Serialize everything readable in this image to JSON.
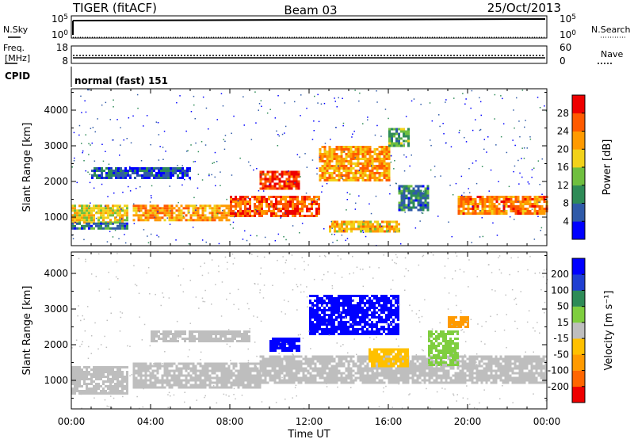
{
  "header": {
    "title": "TIGER (fitACF)",
    "beam": "Beam 03",
    "date": "25/Oct/2013"
  },
  "top_panels": {
    "nsky_label": "N.Sky",
    "nsearch_label": "N.Search",
    "freq_label_1": "Freq.",
    "freq_label_2": "[MHz]",
    "nave_label": "Nave",
    "cpid_label": "CPID",
    "cpid_value": "normal (fast) 151",
    "nsky_ticks": [
      "10^5",
      "10^0"
    ],
    "nsearch_ticks": [
      "10^5",
      "10^0"
    ],
    "freq_ticks": [
      "18",
      "8"
    ],
    "nave_ticks": [
      "60",
      "0"
    ]
  },
  "chart_data": [
    {
      "type": "heatmap",
      "panel": "power",
      "xlabel": "",
      "ylabel": "Slant Range [km]",
      "x_range_hours": [
        0,
        24
      ],
      "ylim": [
        200,
        4600
      ],
      "y_ticks": [
        1000,
        2000,
        3000,
        4000
      ],
      "colorbar": {
        "label": "Power [dB]",
        "ticks": [
          4,
          8,
          12,
          16,
          20,
          24,
          28
        ],
        "range": [
          0,
          32
        ],
        "colors": [
          "#0000ff",
          "#2f5aa8",
          "#2e8b57",
          "#6fbf3f",
          "#f2d21a",
          "#ff9a00",
          "#ff5a00",
          "#ee0000"
        ]
      },
      "regions": [
        {
          "t0": 0.0,
          "t1": 2.8,
          "r0": 850,
          "r1": 1350,
          "value": 18
        },
        {
          "t0": 0.0,
          "t1": 2.8,
          "r0": 650,
          "r1": 850,
          "value": 8
        },
        {
          "t0": 3.1,
          "t1": 8.0,
          "r0": 900,
          "r1": 1350,
          "value": 22
        },
        {
          "t0": 8.0,
          "t1": 12.5,
          "r0": 1000,
          "r1": 1600,
          "value": 26
        },
        {
          "t0": 9.5,
          "t1": 11.5,
          "r0": 1800,
          "r1": 2300,
          "value": 28
        },
        {
          "t0": 12.5,
          "t1": 16.0,
          "r0": 2000,
          "r1": 3000,
          "value": 22
        },
        {
          "t0": 1.0,
          "t1": 6.0,
          "r0": 2100,
          "r1": 2400,
          "value": 6
        },
        {
          "t0": 13.0,
          "t1": 16.5,
          "r0": 600,
          "r1": 900,
          "value": 20
        },
        {
          "t0": 16.5,
          "t1": 18.0,
          "r0": 1200,
          "r1": 1900,
          "value": 8
        },
        {
          "t0": 19.5,
          "t1": 24.0,
          "r0": 1100,
          "r1": 1600,
          "value": 24
        },
        {
          "t0": 16.0,
          "t1": 17.0,
          "r0": 3000,
          "r1": 3500,
          "value": 12
        }
      ]
    },
    {
      "type": "heatmap",
      "panel": "velocity",
      "xlabel": "Time UT",
      "ylabel": "Slant Range [km]",
      "x_range_hours": [
        0,
        24
      ],
      "ylim": [
        200,
        4600
      ],
      "y_ticks": [
        1000,
        2000,
        3000,
        4000
      ],
      "x_ticks": [
        "00:00",
        "04:00",
        "08:00",
        "12:00",
        "16:00",
        "20:00",
        "00:00"
      ],
      "colorbar": {
        "label": "Velocity [m s⁻¹]",
        "ticks": [
          200,
          100,
          50,
          15,
          -15,
          -50,
          -100,
          -200
        ],
        "range": [
          -250,
          250
        ],
        "colors": [
          "#ee0000",
          "#ff6600",
          "#ff9a00",
          "#ffc000",
          "#bebebe",
          "#7fce3f",
          "#2e8b57",
          "#1f3fd1",
          "#0000ff"
        ]
      },
      "regions": [
        {
          "t0": 0.0,
          "t1": 2.8,
          "r0": 650,
          "r1": 1400,
          "value": 0
        },
        {
          "t0": 3.1,
          "t1": 9.5,
          "r0": 800,
          "r1": 1500,
          "value": 0
        },
        {
          "t0": 9.5,
          "t1": 24.0,
          "r0": 900,
          "r1": 1700,
          "value": 0
        },
        {
          "t0": 4.0,
          "t1": 9.0,
          "r0": 2100,
          "r1": 2400,
          "value": 0
        },
        {
          "t0": 10.0,
          "t1": 11.5,
          "r0": 1800,
          "r1": 2200,
          "value": 220
        },
        {
          "t0": 12.0,
          "t1": 16.5,
          "r0": 2300,
          "r1": 3400,
          "value": 220
        },
        {
          "t0": 15.0,
          "t1": 17.0,
          "r0": 1400,
          "r1": 1900,
          "value": -60
        },
        {
          "t0": 18.0,
          "t1": 19.5,
          "r0": 1400,
          "r1": 2400,
          "value": 60
        },
        {
          "t0": 19.0,
          "t1": 20.0,
          "r0": 2500,
          "r1": 2800,
          "value": -120
        }
      ]
    }
  ]
}
